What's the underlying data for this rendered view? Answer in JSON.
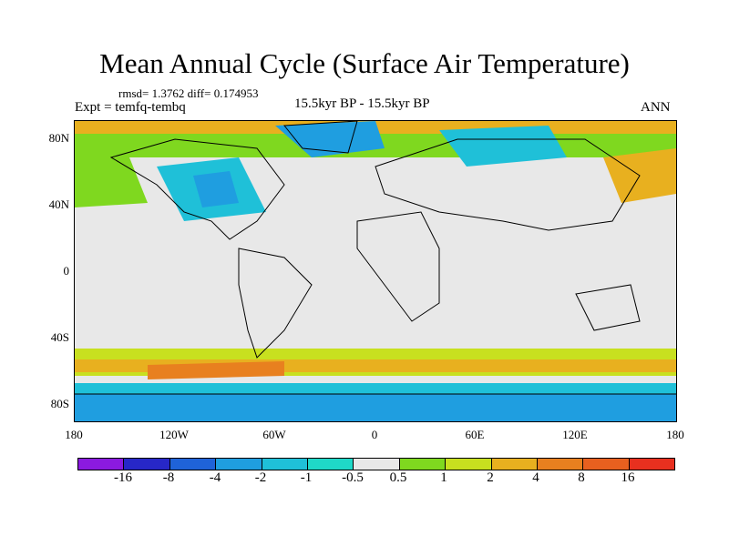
{
  "title": "Mean Annual Cycle (Surface Air Temperature)",
  "stats": "rmsd= 1.3762 diff= 0.174953",
  "expt": "Expt = temfq-tembq",
  "period": "15.5kyr BP - 15.5kyr BP",
  "season": "ANN",
  "y_axis": {
    "ticks": [
      "80N",
      "40N",
      "0",
      "40S",
      "80S"
    ]
  },
  "x_axis": {
    "ticks": [
      "180",
      "120W",
      "60W",
      "0",
      "60E",
      "120E",
      "180"
    ]
  },
  "colorbar": {
    "labels": [
      "-16",
      "-8",
      "-4",
      "-2",
      "-1",
      "-0.5",
      "0.5",
      "1",
      "2",
      "4",
      "8",
      "16"
    ],
    "colors": [
      "#8b1ae0",
      "#2727c8",
      "#1f63d8",
      "#1f9ee0",
      "#1fc0d8",
      "#1fd8c8",
      "#e8e8e8",
      "#7fd81f",
      "#c8e01f",
      "#e8b01f",
      "#e8801f",
      "#e8601f",
      "#e8301f"
    ]
  }
}
